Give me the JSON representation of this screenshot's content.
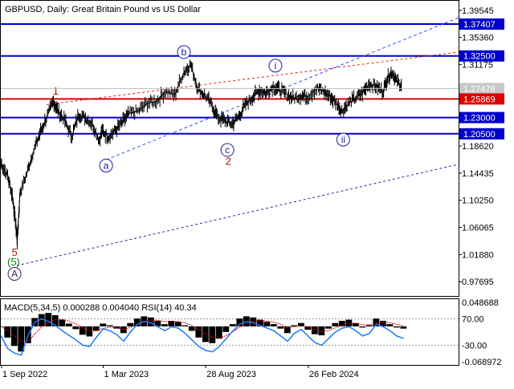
{
  "chart_data": {
    "type": "line",
    "title": "GBPUSD, Daily:  Great Britain Pound vs US Dollar",
    "colors": {
      "price": "#000000",
      "blue_level": "#0000cc",
      "red_level": "#dd0000",
      "label_box_blue": "#0000cc",
      "label_box_red": "#dd0000",
      "current_price_box": "#c8c8c8",
      "channel_upper": "#3050ff",
      "channel_lower": "#4020a0",
      "channel_red": "#dd2020",
      "wave_label_blue": "#1a1aa0",
      "wave_label_red": "#b01010",
      "wave_label_green": "#108010",
      "wave_label_purple": "#402060",
      "macd_hist": "#000000",
      "macd_signal": "#cc0000",
      "rsi": "#1e78ff"
    },
    "price_axis": {
      "ylim": [
        0.955,
        1.41
      ],
      "ticks": [
        "1.39545",
        "1.35360",
        "1.31175",
        "1.27476",
        "1.18620",
        "1.14435",
        "1.10250",
        "1.06065",
        "1.01880",
        "0.97695"
      ]
    },
    "levels": [
      {
        "value": 1.37407,
        "label": "1.37407",
        "color": "blue"
      },
      {
        "value": 1.325,
        "label": "1.32500",
        "color": "blue"
      },
      {
        "value": 1.25869,
        "label": "1.25869",
        "color": "red"
      },
      {
        "value": 1.23,
        "label": "1.23000",
        "color": "blue"
      },
      {
        "value": 1.205,
        "label": "1.20500",
        "color": "blue"
      }
    ],
    "current_price": {
      "value": 1.27476,
      "label": "1.27476"
    },
    "x_axis": {
      "labels": [
        {
          "text": "1 Sep 2022",
          "t": 0.0
        },
        {
          "text": "1 Mar 2023",
          "t": 0.222
        },
        {
          "text": "28 Aug 2023",
          "t": 0.446
        },
        {
          "text": "26 Feb 2024",
          "t": 0.67
        }
      ]
    },
    "price_series": [
      [
        0.0,
        1.16
      ],
      [
        0.015,
        1.14
      ],
      [
        0.025,
        1.11
      ],
      [
        0.032,
        1.07
      ],
      [
        0.036,
        1.04
      ],
      [
        0.042,
        1.115
      ],
      [
        0.055,
        1.14
      ],
      [
        0.07,
        1.175
      ],
      [
        0.085,
        1.205
      ],
      [
        0.1,
        1.23
      ],
      [
        0.115,
        1.255
      ],
      [
        0.125,
        1.24
      ],
      [
        0.14,
        1.225
      ],
      [
        0.155,
        1.2
      ],
      [
        0.17,
        1.235
      ],
      [
        0.185,
        1.23
      ],
      [
        0.2,
        1.22
      ],
      [
        0.215,
        1.195
      ],
      [
        0.222,
        1.21
      ],
      [
        0.235,
        1.2
      ],
      [
        0.25,
        1.21
      ],
      [
        0.265,
        1.222
      ],
      [
        0.28,
        1.236
      ],
      [
        0.3,
        1.24
      ],
      [
        0.32,
        1.252
      ],
      [
        0.34,
        1.255
      ],
      [
        0.36,
        1.27
      ],
      [
        0.38,
        1.265
      ],
      [
        0.4,
        1.3
      ],
      [
        0.415,
        1.312
      ],
      [
        0.43,
        1.275
      ],
      [
        0.445,
        1.265
      ],
      [
        0.46,
        1.25
      ],
      [
        0.475,
        1.23
      ],
      [
        0.49,
        1.225
      ],
      [
        0.505,
        1.22
      ],
      [
        0.52,
        1.232
      ],
      [
        0.535,
        1.25
      ],
      [
        0.55,
        1.262
      ],
      [
        0.565,
        1.272
      ],
      [
        0.58,
        1.268
      ],
      [
        0.595,
        1.278
      ],
      [
        0.61,
        1.272
      ],
      [
        0.625,
        1.265
      ],
      [
        0.64,
        1.26
      ],
      [
        0.655,
        1.264
      ],
      [
        0.67,
        1.262
      ],
      [
        0.69,
        1.275
      ],
      [
        0.705,
        1.27
      ],
      [
        0.72,
        1.262
      ],
      [
        0.735,
        1.25
      ],
      [
        0.745,
        1.24
      ],
      [
        0.76,
        1.252
      ],
      [
        0.775,
        1.26
      ],
      [
        0.79,
        1.268
      ],
      [
        0.805,
        1.282
      ],
      [
        0.82,
        1.278
      ],
      [
        0.835,
        1.27
      ],
      [
        0.845,
        1.292
      ],
      [
        0.855,
        1.3
      ],
      [
        0.865,
        1.285
      ],
      [
        0.875,
        1.28
      ]
    ],
    "wave_labels": [
      {
        "text": "1",
        "t": 0.12,
        "price": 1.27,
        "style": "plain-red"
      },
      {
        "text": "b",
        "t": 0.4,
        "price": 1.331,
        "style": "circle-blue"
      },
      {
        "text": "i",
        "t": 0.6,
        "price": 1.31,
        "style": "circle-blue"
      },
      {
        "text": "a",
        "t": 0.23,
        "price": 1.156,
        "style": "circle-blue"
      },
      {
        "text": "c",
        "t": 0.495,
        "price": 1.18,
        "style": "circle-blue"
      },
      {
        "text": "2",
        "t": 0.497,
        "price": 1.162,
        "style": "plain-red"
      },
      {
        "text": "ii",
        "t": 0.748,
        "price": 1.196,
        "style": "circle-blue"
      },
      {
        "text": "5",
        "t": 0.03,
        "price": 1.022,
        "style": "plain-red"
      },
      {
        "text": "(5)",
        "t": 0.028,
        "price": 1.007,
        "style": "paren-green"
      },
      {
        "text": "A",
        "t": 0.03,
        "price": 0.989,
        "style": "circle-purple"
      }
    ],
    "trend_lines": [
      {
        "from": [
          0.035,
          1.002
        ],
        "to": [
          1.0,
          1.158
        ],
        "style": "lower"
      },
      {
        "from": [
          0.23,
          1.165
        ],
        "to": [
          1.0,
          1.384
        ],
        "style": "upper"
      },
      {
        "from": [
          0.1,
          1.25
        ],
        "to": [
          1.0,
          1.331
        ],
        "style": "red-dashed"
      }
    ],
    "indicator": {
      "title": "MACD(5,34,5) 0.000288 0.004040 RSI(14) 40.34",
      "ylim": [
        -0.068972,
        0.048688
      ],
      "ticks": [
        "0.048688",
        "70.00",
        "-30.00",
        "-0.068972"
      ],
      "macd_hist": [
        0,
        -0.02,
        -0.035,
        -0.045,
        -0.03,
        0.015,
        0.022,
        0.024,
        0.02,
        0.012,
        0.005,
        -0.005,
        -0.015,
        -0.018,
        -0.008,
        0.005,
        0.002,
        -0.004,
        -0.012,
        0.006,
        0.014,
        0.018,
        0.016,
        0.01,
        0.004,
        0.01,
        0.008,
        0.002,
        -0.008,
        -0.02,
        -0.028,
        -0.03,
        -0.022,
        -0.01,
        0.004,
        0.014,
        0.018,
        0.016,
        0.012,
        0.008,
        0.004,
        -0.004,
        -0.012,
        0.002,
        0.006,
        -0.006,
        -0.014,
        -0.016,
        -0.004,
        0.006,
        0.01,
        0.012,
        0.006,
        -0.002,
        0.002,
        0.014,
        0.01,
        0.004,
        -0.002,
        -0.004
      ],
      "rsi": [
        45,
        25,
        18,
        15,
        45,
        65,
        70,
        66,
        60,
        52,
        45,
        38,
        30,
        28,
        42,
        55,
        52,
        46,
        36,
        50,
        62,
        66,
        64,
        58,
        52,
        58,
        56,
        48,
        38,
        28,
        22,
        20,
        28,
        40,
        52,
        62,
        66,
        64,
        60,
        56,
        52,
        44,
        36,
        48,
        54,
        44,
        34,
        30,
        40,
        50,
        56,
        58,
        52,
        44,
        48,
        62,
        58,
        52,
        44,
        40.34
      ]
    }
  }
}
